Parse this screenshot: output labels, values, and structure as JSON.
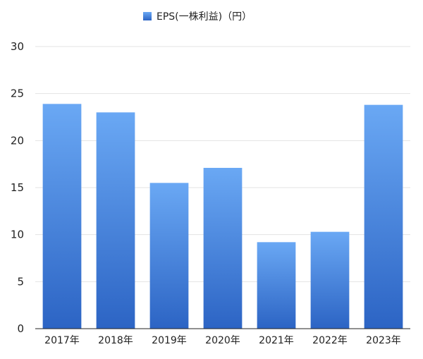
{
  "chart_data": {
    "type": "bar",
    "title": "",
    "xlabel": "",
    "ylabel": "",
    "categories": [
      "2017年",
      "2018年",
      "2019年",
      "2020年",
      "2021年",
      "2022年",
      "2023年"
    ],
    "series": [
      {
        "name": "EPS(一株利益)（円）",
        "values": [
          23.9,
          23.0,
          15.5,
          17.1,
          9.2,
          10.3,
          23.8
        ]
      }
    ],
    "ylim": [
      0,
      30
    ],
    "yticks": [
      "0",
      "5",
      "10",
      "15",
      "20",
      "25",
      "30"
    ],
    "grid": true,
    "legend_position": "top-center",
    "colors": {
      "bar_top": "#6aa8f4",
      "bar_bottom": "#2c64c4",
      "grid": "#e3e3e3",
      "axis": "#222222",
      "text": "#222222"
    }
  }
}
